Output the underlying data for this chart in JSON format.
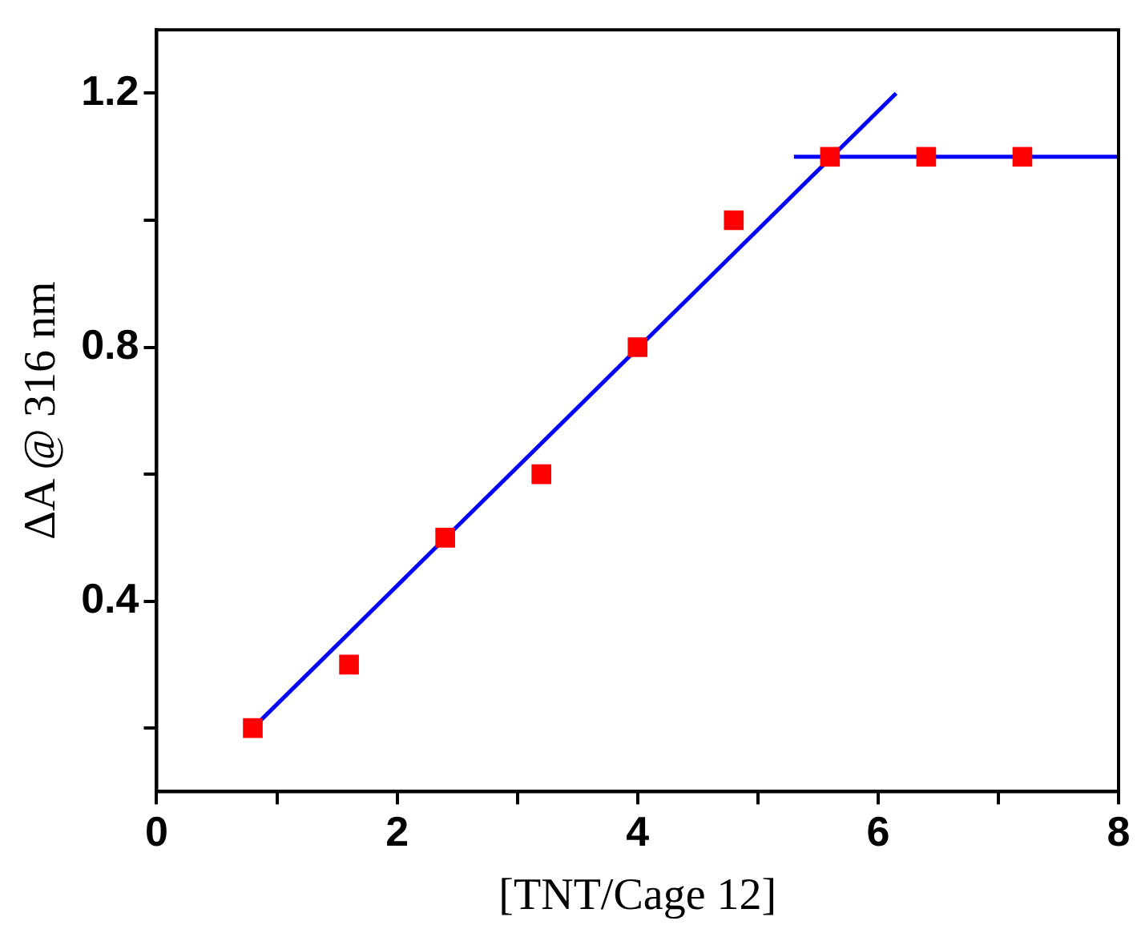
{
  "chart_data": {
    "type": "scatter",
    "xlabel": "[TNT/Cage 12]",
    "ylabel": "ΔA @ 316 nm",
    "xlim": [
      0,
      8
    ],
    "ylim": [
      0.1,
      1.3
    ],
    "xticks": [
      0,
      {
        "value": 1,
        "label": null
      },
      2,
      {
        "value": 3,
        "label": null
      },
      4,
      {
        "value": 5,
        "label": null
      },
      6,
      {
        "value": 7,
        "label": null
      },
      8
    ],
    "yticks": [
      {
        "value": 0.2,
        "label": null
      },
      0.4,
      {
        "value": 0.6,
        "label": null
      },
      0.8,
      {
        "value": 1.0,
        "label": null
      },
      1.2
    ],
    "grid": false,
    "legend": false,
    "series": [
      {
        "marker": "square",
        "color": "#ff0000",
        "x": [
          0.8,
          1.6,
          2.4,
          3.2,
          4.0,
          4.8,
          5.6,
          6.4,
          7.2
        ],
        "values": [
          0.2,
          0.3,
          0.5,
          0.6,
          0.8,
          1.0,
          1.1,
          1.1,
          1.1
        ]
      },
      {
        "type": "line",
        "marker": "none",
        "color": "#0000ff",
        "x": [
          0.8,
          6.15
        ],
        "values": [
          0.2,
          1.2
        ]
      },
      {
        "type": "line",
        "marker": "none",
        "color": "#0000ff",
        "x": [
          5.3,
          8
        ],
        "values": [
          1.1,
          1.1
        ]
      }
    ]
  }
}
